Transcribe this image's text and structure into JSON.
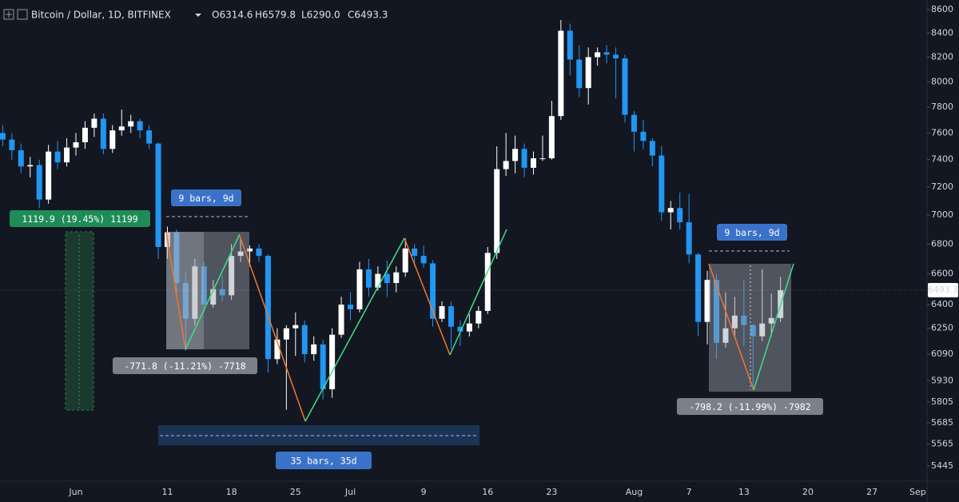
{
  "header": {
    "symbol": "Bitcoin / Dollar, 1D, BITFINEX",
    "ohlc": [
      "O6314.6",
      "H6579.8",
      "L6290.0",
      "C6493.3"
    ]
  },
  "chart_data": {
    "type": "candlestick",
    "log_scale": true,
    "grid": false,
    "up_color": "#ffffff",
    "down_color": "#2196f3",
    "ylim": [
      5371,
      8683
    ],
    "yticks": [
      8600,
      8400,
      8200,
      8000,
      7800,
      7600,
      7400,
      7200,
      7000,
      6800,
      6600,
      6400,
      6250,
      6090,
      5930,
      5805,
      5685,
      5565,
      5445
    ],
    "categories": [
      null,
      null,
      null,
      null,
      null,
      null,
      null,
      null,
      "Jun",
      null,
      null,
      null,
      null,
      null,
      null,
      null,
      null,
      null,
      "11",
      null,
      null,
      null,
      null,
      null,
      null,
      "18",
      null,
      null,
      null,
      null,
      null,
      null,
      "25",
      null,
      null,
      null,
      null,
      null,
      "Jul",
      null,
      null,
      null,
      null,
      null,
      null,
      null,
      "9",
      null,
      null,
      null,
      null,
      null,
      null,
      "16",
      null,
      null,
      null,
      null,
      null,
      null,
      "23",
      null,
      null,
      null,
      null,
      null,
      null,
      null,
      null,
      "Aug",
      null,
      null,
      null,
      null,
      null,
      "7",
      null,
      null,
      null,
      null,
      null,
      "13",
      null,
      null,
      null,
      null,
      null,
      null,
      "20",
      null,
      null,
      null,
      null,
      null,
      null,
      "27",
      null,
      null,
      null,
      null,
      "Sep"
    ],
    "open": [
      7600,
      7550,
      7470,
      7350,
      7360,
      7110,
      7460,
      7380,
      7490,
      7530,
      7640,
      7710,
      7480,
      7620,
      7650,
      7690,
      7620,
      7520,
      6780,
      6880,
      6540,
      6310,
      6650,
      6400,
      6500,
      6460,
      6720,
      6750,
      6770,
      6720,
      6060,
      6180,
      6250,
      6270,
      6090,
      6150,
      5880,
      6210,
      6400,
      6370,
      6630,
      6510,
      6600,
      6540,
      6610,
      6770,
      6720,
      6670,
      6310,
      6390,
      6260,
      6230,
      6280,
      6360,
      6740,
      7330,
      7390,
      7480,
      7340,
      7410,
      7410,
      7730,
      8420,
      8180,
      7950,
      8200,
      8240,
      8220,
      8190,
      7740,
      7610,
      7540,
      7430,
      7020,
      7050,
      6950,
      6730,
      6290,
      6560,
      6160,
      6250,
      6330,
      6270,
      6200,
      6280,
      6314.6,
      null,
      null,
      null,
      null,
      null,
      null,
      null,
      null,
      null,
      null,
      null,
      null,
      null,
      null,
      null
    ],
    "high": [
      7660,
      7600,
      7520,
      7420,
      7400,
      7510,
      7540,
      7560,
      7600,
      7690,
      7750,
      7750,
      7660,
      7780,
      7740,
      7710,
      7660,
      7530,
      6920,
      6900,
      6610,
      6700,
      6680,
      6560,
      6590,
      6800,
      6840,
      6790,
      6800,
      6730,
      6250,
      6270,
      6350,
      6300,
      6200,
      6180,
      6250,
      6450,
      6480,
      6680,
      6700,
      6650,
      6690,
      6650,
      6840,
      6800,
      6790,
      6690,
      6420,
      6420,
      6300,
      6340,
      6390,
      6780,
      7500,
      7600,
      7580,
      7520,
      7460,
      7580,
      7850,
      8510,
      8480,
      8300,
      8280,
      8280,
      8300,
      8280,
      8220,
      7770,
      7700,
      7560,
      7500,
      7100,
      7160,
      7150,
      6740,
      6620,
      6600,
      6480,
      6450,
      6560,
      6280,
      6630,
      6470,
      6579.8,
      null,
      null,
      null,
      null,
      null,
      null,
      null,
      null,
      null,
      null,
      null,
      null,
      null,
      null,
      null
    ],
    "low": [
      7500,
      7400,
      7300,
      7270,
      7050,
      7080,
      7330,
      7350,
      7430,
      7480,
      7570,
      7440,
      7450,
      7580,
      7600,
      7560,
      7480,
      6700,
      6700,
      6460,
      6110,
      6270,
      6350,
      6380,
      6420,
      6430,
      6680,
      6650,
      6680,
      5980,
      6030,
      5760,
      6080,
      6040,
      6050,
      5820,
      5830,
      6190,
      6300,
      6350,
      6450,
      6490,
      6450,
      6480,
      6580,
      6650,
      6640,
      6260,
      6290,
      6120,
      6140,
      6200,
      6250,
      6340,
      6700,
      7280,
      7300,
      7270,
      7290,
      7390,
      7400,
      7700,
      8050,
      7880,
      7820,
      8130,
      8150,
      7870,
      7680,
      7460,
      7480,
      7350,
      6960,
      6900,
      6900,
      6670,
      6200,
      6150,
      6060,
      6130,
      6200,
      6140,
      5880,
      6170,
      6200,
      6290.0,
      null,
      null,
      null,
      null,
      null,
      null,
      null,
      null,
      null,
      null,
      null,
      null,
      null,
      null,
      null
    ],
    "close": [
      7550,
      7470,
      7350,
      7360,
      7110,
      7460,
      7380,
      7490,
      7530,
      7640,
      7710,
      7480,
      7620,
      7650,
      7690,
      7620,
      7520,
      6780,
      6880,
      6540,
      6310,
      6650,
      6400,
      6500,
      6460,
      6720,
      6750,
      6770,
      6720,
      6060,
      6180,
      6250,
      6270,
      6090,
      6150,
      5880,
      6210,
      6400,
      6370,
      6630,
      6510,
      6600,
      6540,
      6610,
      6770,
      6720,
      6670,
      6310,
      6390,
      6260,
      6230,
      6280,
      6360,
      6740,
      7330,
      7390,
      7480,
      7340,
      7410,
      7410,
      7730,
      8420,
      8180,
      7950,
      8200,
      8240,
      8220,
      8190,
      7740,
      7610,
      7540,
      7430,
      7020,
      7050,
      6950,
      6730,
      6290,
      6560,
      6160,
      6250,
      6330,
      6270,
      6200,
      6280,
      6314.6,
      6493.3,
      null,
      null,
      null,
      null,
      null,
      null,
      null,
      null,
      null,
      null,
      null,
      null,
      null,
      null,
      null
    ],
    "annotations": [
      "1119.9 (19.45%) 11199",
      "9 bars, 9d",
      "-771.8 (-11.21%) -7718",
      "35 bars, 35d",
      "9 bars, 9d",
      "-798.2 (-11.99%) -7982"
    ]
  }
}
